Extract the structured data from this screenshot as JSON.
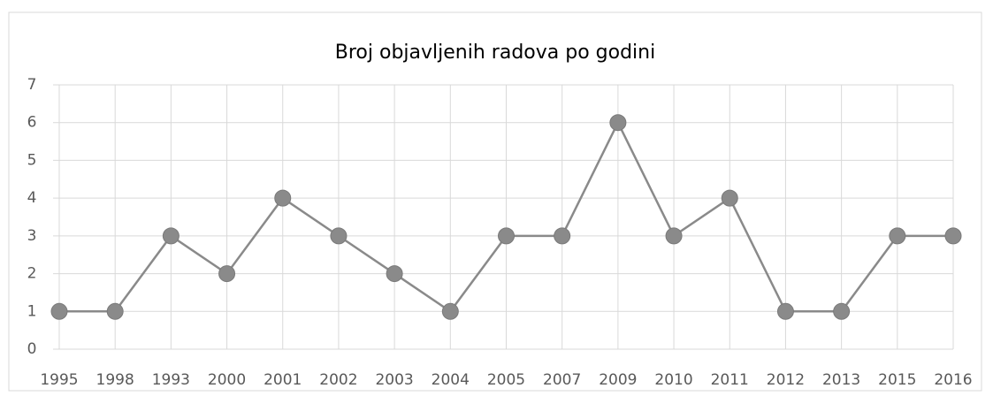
{
  "chart_data": {
    "type": "line",
    "title": "Broj objavljenih radova po godini",
    "categories": [
      "1995",
      "1998",
      "1993",
      "2000",
      "2001",
      "2002",
      "2003",
      "2004",
      "2005",
      "2007",
      "2009",
      "2010",
      "2011",
      "2012",
      "2013",
      "2015",
      "2016"
    ],
    "values": [
      1,
      1,
      3,
      2,
      4,
      3,
      2,
      1,
      3,
      3,
      6,
      3,
      4,
      1,
      1,
      3,
      3
    ],
    "color": "#8a8a8a",
    "ylim": [
      0,
      7
    ],
    "yticks": [
      0,
      1,
      2,
      3,
      4,
      5,
      6,
      7
    ],
    "grid": true
  }
}
